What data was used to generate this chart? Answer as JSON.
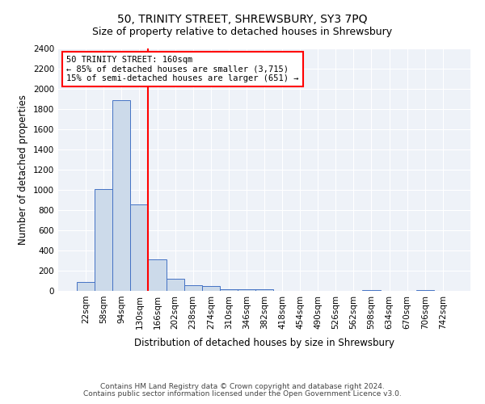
{
  "title": "50, TRINITY STREET, SHREWSBURY, SY3 7PQ",
  "subtitle": "Size of property relative to detached houses in Shrewsbury",
  "xlabel": "Distribution of detached houses by size in Shrewsbury",
  "ylabel": "Number of detached properties",
  "footnote1": "Contains HM Land Registry data © Crown copyright and database right 2024.",
  "footnote2": "Contains public sector information licensed under the Open Government Licence v3.0.",
  "bar_labels": [
    "22sqm",
    "58sqm",
    "94sqm",
    "130sqm",
    "166sqm",
    "202sqm",
    "238sqm",
    "274sqm",
    "310sqm",
    "346sqm",
    "382sqm",
    "418sqm",
    "454sqm",
    "490sqm",
    "526sqm",
    "562sqm",
    "598sqm",
    "634sqm",
    "670sqm",
    "706sqm",
    "742sqm"
  ],
  "bar_values": [
    90,
    1010,
    1890,
    860,
    310,
    120,
    55,
    45,
    20,
    15,
    18,
    0,
    0,
    0,
    0,
    0,
    10,
    0,
    0,
    10,
    0
  ],
  "bar_color": "#ccdaea",
  "bar_edge_color": "#4472c4",
  "bar_width": 1.0,
  "vline_color": "red",
  "vline_x_index": 4,
  "ylim": [
    0,
    2400
  ],
  "yticks": [
    0,
    200,
    400,
    600,
    800,
    1000,
    1200,
    1400,
    1600,
    1800,
    2000,
    2200,
    2400
  ],
  "annotation_title": "50 TRINITY STREET: 160sqm",
  "annotation_line1": "← 85% of detached houses are smaller (3,715)",
  "annotation_line2": "15% of semi-detached houses are larger (651) →",
  "bg_color": "#eef2f8",
  "grid_color": "#ffffff",
  "title_fontsize": 10,
  "subtitle_fontsize": 9,
  "axis_label_fontsize": 8.5,
  "tick_fontsize": 7.5,
  "annotation_fontsize": 7.5,
  "footnote_fontsize": 6.5
}
